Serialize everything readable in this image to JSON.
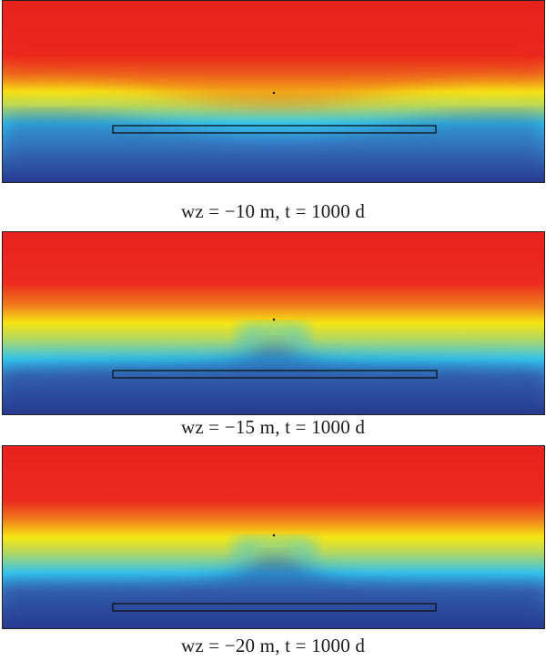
{
  "figure": {
    "panels": [
      {
        "caption": "wz = −10 m, t = 1000 d"
      },
      {
        "caption": "wz = −15 m, t = 1000 d"
      },
      {
        "caption": "wz = −20 m, t = 1000 d"
      }
    ],
    "colormap": {
      "top_dark": "#8b1a1a",
      "red": "#e8221e",
      "orange": "#f07a1c",
      "yellow": "#f6e614",
      "green": "#a6d66a",
      "cyan": "#32c6f0",
      "blue": "#3a76c4",
      "navy": "#283a8e"
    }
  }
}
